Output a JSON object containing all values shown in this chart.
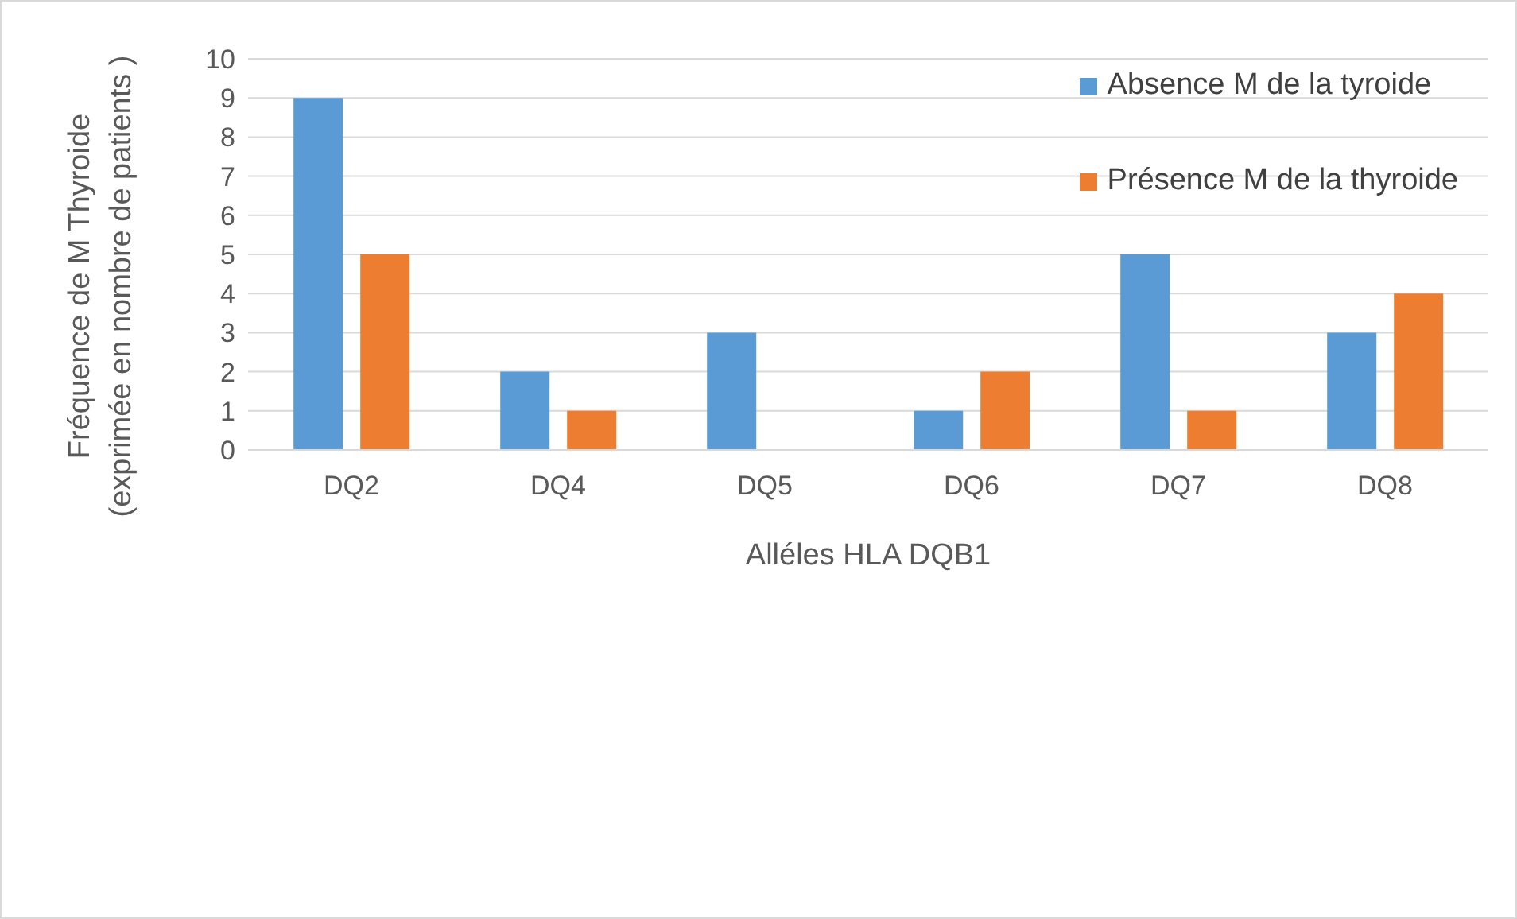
{
  "chart_data": {
    "type": "bar",
    "xlabel": "Alléles HLA DQB1",
    "ylabel": "Fréquence de M Thyroide (exprimée en nombre de patients )",
    "categories": [
      "DQ2",
      "DQ4",
      "DQ5",
      "DQ6",
      "DQ7",
      "DQ8"
    ],
    "series": [
      {
        "name": "Absence M de la tyroide",
        "color": "#5b9bd5",
        "values": [
          9,
          2,
          3,
          1,
          5,
          3
        ]
      },
      {
        "name": "Présence M de la thyroide",
        "color": "#ed7d31",
        "values": [
          5,
          1,
          0,
          2,
          1,
          4
        ]
      }
    ],
    "ylim": [
      0,
      10
    ],
    "yticks": [
      0,
      1,
      2,
      3,
      4,
      5,
      6,
      7,
      8,
      9,
      10
    ],
    "grid": "y",
    "legend": "top right"
  }
}
